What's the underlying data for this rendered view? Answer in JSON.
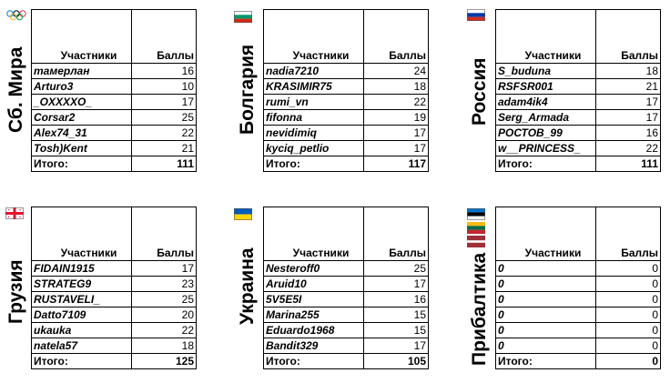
{
  "header": {
    "participants": "Участники",
    "points": "Баллы"
  },
  "total_label": "Итого:",
  "teams": [
    {
      "name": "Сб. Мира",
      "flag": "olympic-rings-icon",
      "total": "111",
      "rows": [
        {
          "player": "тамерлан",
          "score": "16"
        },
        {
          "player": "Arturo3",
          "score": "10"
        },
        {
          "player": "_OXXXXO_",
          "score": "17"
        },
        {
          "player": "Corsar2",
          "score": "25"
        },
        {
          "player": "Alex74_31",
          "score": "22"
        },
        {
          "player": "Tosh)Kent",
          "score": "21"
        }
      ]
    },
    {
      "name": "Болгария",
      "flag": "bulgaria-flag-icon",
      "total": "117",
      "rows": [
        {
          "player": "nadia7210",
          "score": "24"
        },
        {
          "player": "KRASIMIR75",
          "score": "18"
        },
        {
          "player": "rumi_vn",
          "score": "22"
        },
        {
          "player": "fifonna",
          "score": "19"
        },
        {
          "player": "nevidimiq",
          "score": "17"
        },
        {
          "player": "kyciq_petlio",
          "score": "17"
        }
      ]
    },
    {
      "name": "Россия",
      "flag": "russia-flag-icon",
      "total": "111",
      "rows": [
        {
          "player": "S_buduna",
          "score": "18"
        },
        {
          "player": "RSFSR001",
          "score": "21"
        },
        {
          "player": "adam4ik4",
          "score": "17"
        },
        {
          "player": "Serg_Armada",
          "score": "17"
        },
        {
          "player": "РОСТОВ_99",
          "score": "16"
        },
        {
          "player": "w__PRINCESS_",
          "score": "22"
        }
      ]
    },
    {
      "name": "Грузия",
      "flag": "georgia-flag-icon",
      "total": "125",
      "rows": [
        {
          "player": "FIDAIN1915",
          "score": "17"
        },
        {
          "player": "STRATEG9",
          "score": "23"
        },
        {
          "player": "RUSTAVELI_",
          "score": "25"
        },
        {
          "player": " Datto7109",
          "score": "20"
        },
        {
          "player": " ukauka",
          "score": "22"
        },
        {
          "player": "natela57",
          "score": "18"
        }
      ]
    },
    {
      "name": "Украина",
      "flag": "ukraine-flag-icon",
      "total": "105",
      "rows": [
        {
          "player": "Nesteroff0",
          "score": "25"
        },
        {
          "player": " Aruid10",
          "score": "17"
        },
        {
          "player": "5V5E5I",
          "score": "16"
        },
        {
          "player": " Marina255",
          "score": "15"
        },
        {
          "player": "  Eduardo1968",
          "score": "15"
        },
        {
          "player": "Bandit329",
          "score": "17"
        }
      ]
    },
    {
      "name": "Прибалтика",
      "flag": "baltic-flags-icon",
      "flags": [
        "estonia-flag-icon",
        "lithuania-flag-icon",
        "latvia-flag-icon"
      ],
      "total": "0",
      "rows": [
        {
          "player": "0",
          "score": "0"
        },
        {
          "player": "0",
          "score": "0"
        },
        {
          "player": "0",
          "score": "0"
        },
        {
          "player": "0",
          "score": "0"
        },
        {
          "player": "0",
          "score": "0"
        },
        {
          "player": "0",
          "score": "0"
        }
      ]
    }
  ]
}
